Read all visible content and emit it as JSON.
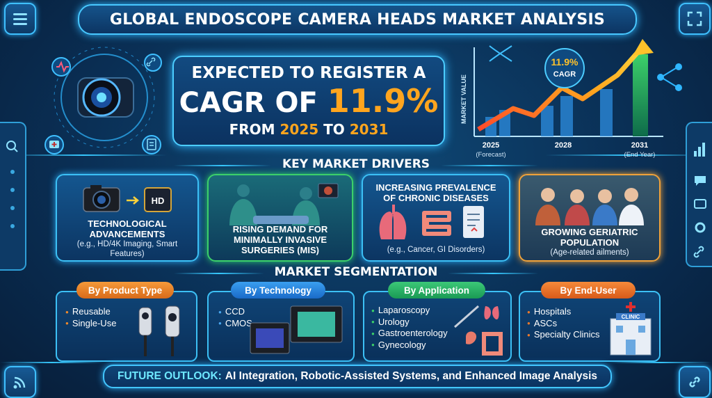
{
  "title": "GLOBAL ENDOSCOPE CAMERA HEADS MARKET ANALYSIS",
  "cagr_card": {
    "line1": "EXPECTED TO REGISTER A",
    "line2_prefix": "CAGR OF",
    "value": "11.9%",
    "line3_from": "FROM",
    "start_year": "2025",
    "line3_to": "TO",
    "end_year": "2031"
  },
  "chart": {
    "ylabel": "MARKET VALUE",
    "badge_value": "11.9%",
    "badge_label": "CAGR",
    "ticks": [
      {
        "year": "2025",
        "note": "(Forecast)"
      },
      {
        "year": "2028",
        "note": ""
      },
      {
        "year": "2031",
        "note": "(End Year)"
      }
    ]
  },
  "drivers": {
    "heading": "KEY MARKET DRIVERS",
    "items": [
      {
        "title": "TECHNOLOGICAL ADVANCEMENTS",
        "sub": "(e.g., HD/4K Imaging, Smart Features)",
        "badge": "HD"
      },
      {
        "title": "RISING DEMAND FOR MINIMALLY INVASIVE SURGERIES (MIS)",
        "sub": ""
      },
      {
        "title": "INCREASING PREVALENCE OF CHRONIC DISEASES",
        "sub": "(e.g., Cancer, GI Disorders)"
      },
      {
        "title": "GROWING GERIATRIC POPULATION",
        "sub": "(Age-related ailments)"
      }
    ]
  },
  "segmentation": {
    "heading": "MARKET SEGMENTATION",
    "groups": [
      {
        "label": "By Product Type",
        "items": [
          "Reusable",
          "Single-Use"
        ],
        "color": "#f08a2a"
      },
      {
        "label": "By Technology",
        "items": [
          "CCD",
          "CMOS"
        ],
        "color": "#2a8fe0"
      },
      {
        "label": "By Application",
        "items": [
          "Laparoscopy",
          "Urology",
          "Gastroenterology",
          "Gynecology"
        ],
        "color": "#2bb36a"
      },
      {
        "label": "By End-User",
        "items": [
          "Hospitals",
          "ASCs",
          "Specialty Clinics"
        ],
        "color": "#f07a2a",
        "building_sign": "CLINIC"
      }
    ]
  },
  "outlook": {
    "label": "FUTURE OUTLOOK:",
    "text": "AI Integration, Robotic-Assisted Systems, and Enhanced Image Analysis"
  },
  "colors": {
    "accent": "#42c6ff",
    "orange": "#ffa51e",
    "green": "#3cd06a"
  }
}
